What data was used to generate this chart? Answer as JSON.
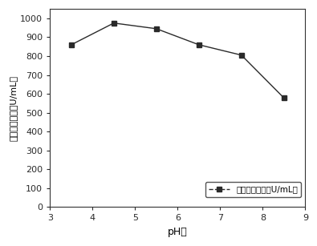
{
  "x": [
    3.5,
    4.5,
    5.5,
    6.5,
    7.5,
    8.5
  ],
  "y": [
    860,
    975,
    945,
    860,
    805,
    578
  ],
  "xlabel": "pH値",
  "ylabel": "橙皮苷酯酶活（U/mL）",
  "legend_label": "橙皮苷酯酶活（U/mL）",
  "xlim": [
    3,
    9
  ],
  "ylim": [
    0,
    1050
  ],
  "yticks": [
    0,
    100,
    200,
    300,
    400,
    500,
    600,
    700,
    800,
    900,
    1000
  ],
  "xticks": [
    3,
    4,
    5,
    6,
    7,
    8,
    9
  ],
  "line_color": "#2a2a2a",
  "marker": "s",
  "marker_size": 5,
  "background_color": "#ffffff"
}
